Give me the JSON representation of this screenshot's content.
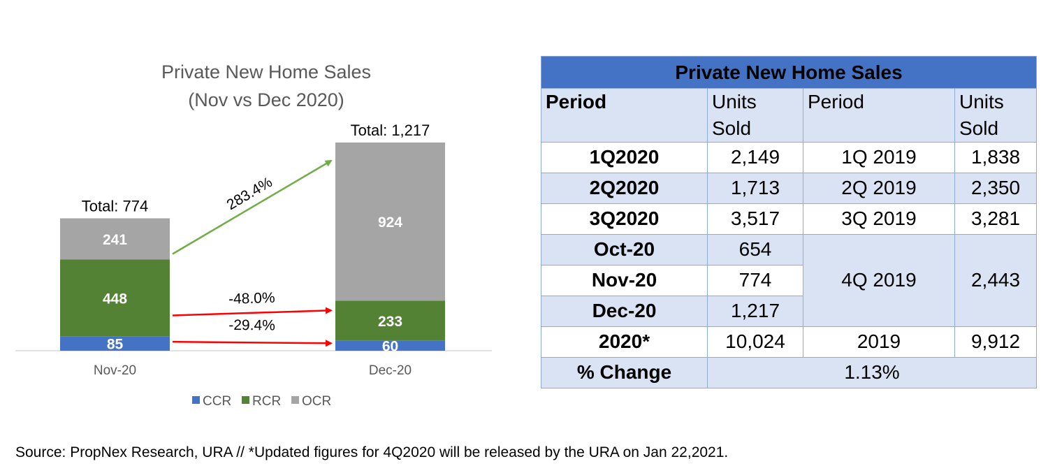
{
  "chart_data": {
    "type": "bar",
    "stacked": true,
    "title": "Private New Home Sales",
    "subtitle": "(Nov vs Dec 2020)",
    "categories": [
      "Nov-20",
      "Dec-20"
    ],
    "series": [
      {
        "name": "CCR",
        "values": [
          85,
          60
        ],
        "color": "#4472c4"
      },
      {
        "name": "RCR",
        "values": [
          448,
          233
        ],
        "color": "#548235"
      },
      {
        "name": "OCR",
        "values": [
          241,
          924
        ],
        "color": "#a5a5a5"
      }
    ],
    "totals": [
      "Total: 774",
      "Total: 1,217"
    ],
    "annotations": [
      {
        "label": "283.4%",
        "series": "OCR",
        "color": "#70ad47"
      },
      {
        "label": "-48.0%",
        "series": "RCR",
        "color": "#ff0000"
      },
      {
        "label": "-29.4%",
        "series": "CCR",
        "color": "#ff0000"
      }
    ],
    "ylim": [
      0,
      1217
    ],
    "legend_position": "bottom"
  },
  "table": {
    "title": "Private New Home Sales",
    "headers": [
      "Period",
      "Units Sold",
      "Period",
      "Units Sold"
    ],
    "rows": [
      {
        "period": "1Q2020",
        "units": "2,149",
        "period2019": "1Q 2019",
        "units2019": "1,838"
      },
      {
        "period": "2Q2020",
        "units": "1,713",
        "period2019": "2Q 2019",
        "units2019": "2,350"
      },
      {
        "period": "3Q2020",
        "units": "3,517",
        "period2019": "3Q 2019",
        "units2019": "3,281"
      },
      {
        "period": "Oct-20",
        "units": "654"
      },
      {
        "period": "Nov-20",
        "units": "774"
      },
      {
        "period": "Dec-20",
        "units": "1,217"
      },
      {
        "period": "2020*",
        "units": "10,024",
        "period2019": "2019",
        "units2019": "9,912"
      }
    ],
    "merged_4q": {
      "period2019": "4Q 2019",
      "units2019": "2,443"
    },
    "change_label": "% Change",
    "change_value": "1.13%"
  },
  "source_note": "Source: PropNex Research, URA // *Updated figures for 4Q2020 will be released by the URA on Jan 22,2021."
}
